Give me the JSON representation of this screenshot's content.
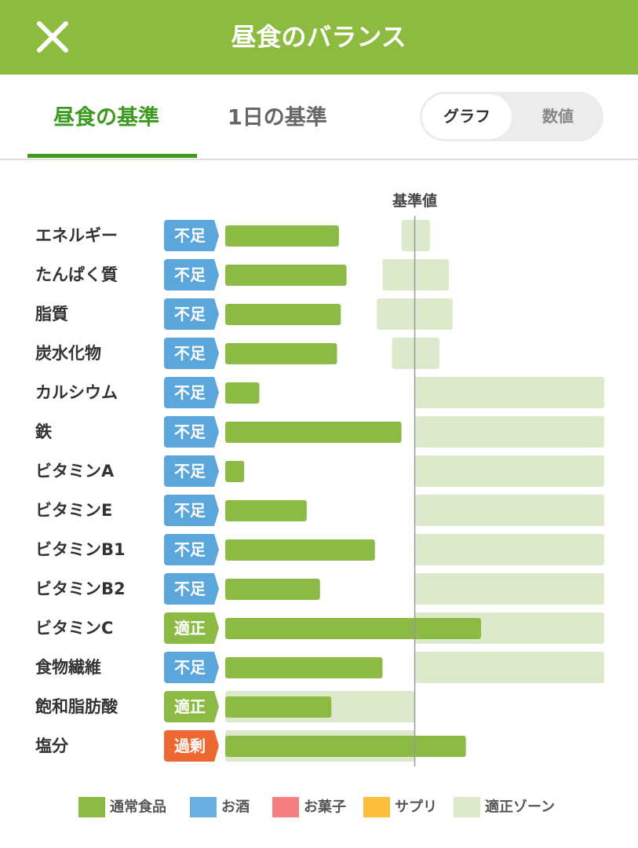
{
  "header": {
    "title": "昼食のバランス"
  },
  "tabs": [
    "昼食の基準",
    "1日の基準"
  ],
  "toggle": [
    "グラフ",
    "数値"
  ],
  "chart_data": {
    "type": "bar",
    "orientation": "horizontal",
    "baseline": {
      "value": 100,
      "label": "基準値"
    },
    "xlim": [
      0,
      200
    ],
    "categories": [
      "エネルギー",
      "たんぱく質",
      "脂質",
      "炭水化物",
      "カルシウム",
      "鉄",
      "ビタミンA",
      "ビタミンE",
      "ビタミンB1",
      "ビタミンB2",
      "ビタミンC",
      "食物繊維",
      "飽和脂肪酸",
      "塩分"
    ],
    "statuses": [
      {
        "label": "不足",
        "color": "#5ba7dc"
      },
      {
        "label": "不足",
        "color": "#5ba7dc"
      },
      {
        "label": "不足",
        "color": "#5ba7dc"
      },
      {
        "label": "不足",
        "color": "#5ba7dc"
      },
      {
        "label": "不足",
        "color": "#5ba7dc"
      },
      {
        "label": "不足",
        "color": "#5ba7dc"
      },
      {
        "label": "不足",
        "color": "#5ba7dc"
      },
      {
        "label": "不足",
        "color": "#5ba7dc"
      },
      {
        "label": "不足",
        "color": "#5ba7dc"
      },
      {
        "label": "不足",
        "color": "#5ba7dc"
      },
      {
        "label": "適正",
        "color": "#8cbb45"
      },
      {
        "label": "不足",
        "color": "#5ba7dc"
      },
      {
        "label": "適正",
        "color": "#8cbb45"
      },
      {
        "label": "過剰",
        "color": "#ee6833"
      }
    ],
    "series": [
      {
        "name": "通常食品",
        "color": "#8cbb45",
        "values": [
          60,
          64,
          61,
          59,
          18,
          93,
          10,
          43,
          79,
          50,
          135,
          83,
          56,
          127
        ]
      }
    ],
    "legend": [
      {
        "name": "お酒",
        "color": "#6aaee2"
      },
      {
        "name": "お菓子",
        "color": "#f57f7f"
      },
      {
        "name": "サプリ",
        "color": "#fbbd3c"
      }
    ],
    "zone": {
      "name": "適正ゾーン",
      "color": "#dde9cb",
      "ranges": [
        [
          93,
          108
        ],
        [
          83,
          118
        ],
        [
          80,
          120
        ],
        [
          88,
          113
        ],
        [
          100,
          200
        ],
        [
          100,
          200
        ],
        [
          100,
          200
        ],
        [
          100,
          200
        ],
        [
          100,
          200
        ],
        [
          100,
          200
        ],
        [
          100,
          200
        ],
        [
          100,
          200
        ],
        [
          0,
          100
        ],
        [
          0,
          100
        ]
      ]
    }
  }
}
